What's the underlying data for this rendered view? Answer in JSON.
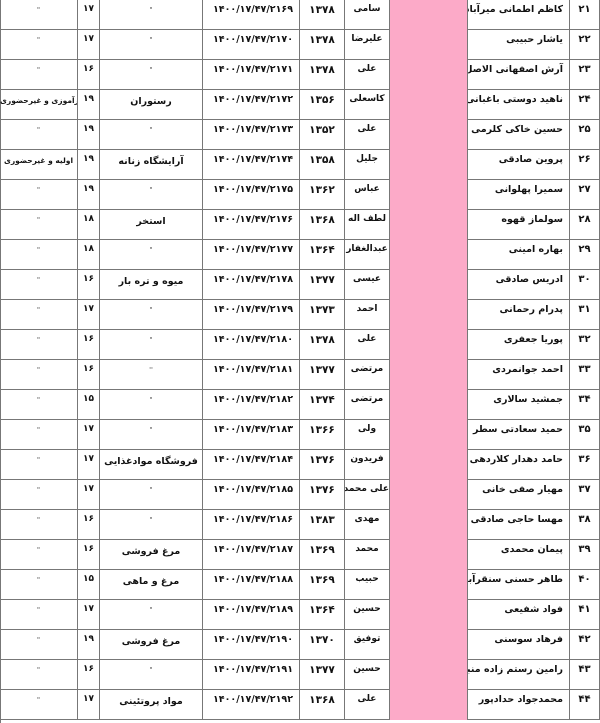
{
  "table": {
    "rows": [
      {
        "num": "۲۱",
        "name": "کاظم اطمانی میرآباد",
        "father": "سامی",
        "year": "۱۳۷۸",
        "cert": "۱۴۰۰/۱۷/۴۷/۲۱۶۹",
        "business": "\"",
        "score": "۱۷",
        "notes": "\""
      },
      {
        "num": "۲۲",
        "name": "یاشار حبیبی",
        "father": "علیرضا",
        "year": "۱۳۷۸",
        "cert": "۱۴۰۰/۱۷/۴۷/۲۱۷۰",
        "business": "\"",
        "score": "۱۷",
        "notes": "\""
      },
      {
        "num": "۲۳",
        "name": "آرش اصفهانی الاصل",
        "father": "علی",
        "year": "۱۳۷۸",
        "cert": "۱۴۰۰/۱۷/۴۷/۲۱۷۱",
        "business": "\"",
        "score": "۱۶",
        "notes": "\""
      },
      {
        "num": "۲۴",
        "name": "ناهید دوستی باغبانی",
        "father": "کاسعلی",
        "year": "۱۳۵۶",
        "cert": "۱۴۰۰/۱۷/۴۷/۲۱۷۲",
        "business": "رستوران",
        "score": "۱۹",
        "notes": "بازآموزی و غیرحضوری"
      },
      {
        "num": "۲۵",
        "name": "حسین خاکی کلرمی",
        "father": "علی",
        "year": "۱۳۵۲",
        "cert": "۱۴۰۰/۱۷/۴۷/۲۱۷۳",
        "business": "\"",
        "score": "۱۹",
        "notes": "\""
      },
      {
        "num": "۲۶",
        "name": "پروین صادقی",
        "father": "جلیل",
        "year": "۱۳۵۸",
        "cert": "۱۴۰۰/۱۷/۴۷/۲۱۷۴",
        "business": "آرایشگاه زنانه",
        "score": "۱۹",
        "notes": "اولیه و غیرحضوری"
      },
      {
        "num": "۲۷",
        "name": "سمیرا پهلوانی",
        "father": "عباس",
        "year": "۱۳۶۲",
        "cert": "۱۴۰۰/۱۷/۴۷/۲۱۷۵",
        "business": "\"",
        "score": "۱۹",
        "notes": "\""
      },
      {
        "num": "۲۸",
        "name": "سولماز قهوه",
        "father": "لطف اله",
        "year": "۱۳۶۸",
        "cert": "۱۴۰۰/۱۷/۴۷/۲۱۷۶",
        "business": "استخر",
        "score": "۱۸",
        "notes": "\""
      },
      {
        "num": "۲۹",
        "name": "بهاره امینی",
        "father": "عبدالغفار",
        "year": "۱۳۶۴",
        "cert": "۱۴۰۰/۱۷/۴۷/۲۱۷۷",
        "business": "\"",
        "score": "۱۸",
        "notes": "\""
      },
      {
        "num": "۳۰",
        "name": "ادریس صادقی",
        "father": "عیسی",
        "year": "۱۳۷۷",
        "cert": "۱۴۰۰/۱۷/۴۷/۲۱۷۸",
        "business": "میوه و تره بار",
        "score": "۱۶",
        "notes": "\""
      },
      {
        "num": "۳۱",
        "name": "پدرام رحمانی",
        "father": "احمد",
        "year": "۱۳۷۳",
        "cert": "۱۴۰۰/۱۷/۴۷/۲۱۷۹",
        "business": "\"",
        "score": "۱۷",
        "notes": "\""
      },
      {
        "num": "۳۲",
        "name": "پوریا جعفری",
        "father": "علی",
        "year": "۱۳۷۸",
        "cert": "۱۴۰۰/۱۷/۴۷/۲۱۸۰",
        "business": "\"",
        "score": "۱۶",
        "notes": "\""
      },
      {
        "num": "۳۳",
        "name": "احمد جوانمردی",
        "father": "مرتضی",
        "year": "۱۳۷۷",
        "cert": "۱۴۰۰/۱۷/۴۷/۲۱۸۱",
        "business": "''",
        "score": "۱۶",
        "notes": "\""
      },
      {
        "num": "۳۴",
        "name": "جمشید سالاری",
        "father": "مرتضی",
        "year": "۱۳۷۴",
        "cert": "۱۴۰۰/۱۷/۴۷/۲۱۸۲",
        "business": "\"",
        "score": "۱۵",
        "notes": "\""
      },
      {
        "num": "۳۵",
        "name": "حمید سعادتی سطر",
        "father": "ولی",
        "year": "۱۳۶۶",
        "cert": "۱۴۰۰/۱۷/۴۷/۲۱۸۳",
        "business": "\"",
        "score": "۱۷",
        "notes": "\""
      },
      {
        "num": "۳۶",
        "name": "حامد دهدار کلاردهی",
        "father": "فریدون",
        "year": "۱۳۷۶",
        "cert": "۱۴۰۰/۱۷/۴۷/۲۱۸۴",
        "business": "فروشگاه موادغذایی",
        "score": "۱۷",
        "notes": "\""
      },
      {
        "num": "۳۷",
        "name": "مهیار صفی خانی",
        "father": "علی محمد",
        "year": "۱۳۷۶",
        "cert": "۱۴۰۰/۱۷/۴۷/۲۱۸۵",
        "business": "\"",
        "score": "۱۷",
        "notes": "\""
      },
      {
        "num": "۳۸",
        "name": "مهسا حاجی صادقی",
        "father": "مهدی",
        "year": "۱۳۸۳",
        "cert": "۱۴۰۰/۱۷/۴۷/۲۱۸۶",
        "business": "\"",
        "score": "۱۶",
        "notes": "\""
      },
      {
        "num": "۳۹",
        "name": "پیمان محمدی",
        "father": "محمد",
        "year": "۱۳۶۹",
        "cert": "۱۴۰۰/۱۷/۴۷/۲۱۸۷",
        "business": "مرغ فروشی",
        "score": "۱۶",
        "notes": "\""
      },
      {
        "num": "۴۰",
        "name": "طاهر حسنی سنقرآبادی",
        "father": "حبیب",
        "year": "۱۳۶۹",
        "cert": "۱۴۰۰/۱۷/۴۷/۲۱۸۸",
        "business": "مرغ و ماهی",
        "score": "۱۵",
        "notes": "\""
      },
      {
        "num": "۴۱",
        "name": "فواد شفیعی",
        "father": "حسین",
        "year": "۱۳۶۴",
        "cert": "۱۴۰۰/۱۷/۴۷/۲۱۸۹",
        "business": "\"",
        "score": "۱۷",
        "notes": "\""
      },
      {
        "num": "۴۲",
        "name": "فرهاد سوسنی",
        "father": "توفیق",
        "year": "۱۳۷۰",
        "cert": "۱۴۰۰/۱۷/۴۷/۲۱۹۰",
        "business": "مرغ فروشی",
        "score": "۱۹",
        "notes": "\""
      },
      {
        "num": "۴۳",
        "name": "رامین رستم زاده منبر",
        "father": "حسین",
        "year": "۱۳۷۷",
        "cert": "۱۴۰۰/۱۷/۴۷/۲۱۹۱",
        "business": "\"",
        "score": "۱۶",
        "notes": "\""
      },
      {
        "num": "۴۴",
        "name": "محمدجواد حدادپور",
        "father": "علی",
        "year": "۱۳۶۸",
        "cert": "۱۴۰۰/۱۷/۴۷/۲۱۹۲",
        "business": "مواد پروتئینی",
        "score": "۱۷",
        "notes": "\""
      }
    ]
  },
  "colors": {
    "highlight_column": "#fcaac8",
    "grid": "#777777"
  }
}
